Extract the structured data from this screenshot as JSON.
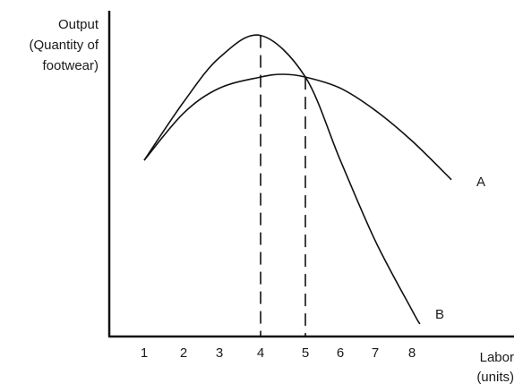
{
  "chart_data": {
    "type": "line",
    "ylabel_lines": [
      "Output",
      "(Quantity of",
      "footwear)"
    ],
    "xlabel_lines": [
      "Labor",
      "(units)"
    ],
    "x_ticks": [
      1,
      2,
      3,
      4,
      5,
      6,
      7,
      8
    ],
    "grid": false,
    "series": [
      {
        "name": "A",
        "x": [
          1,
          2,
          3,
          4,
          4.5,
          5,
          6,
          7,
          8,
          9
        ],
        "y": [
          0.59,
          0.76,
          0.85,
          0.89,
          0.9,
          0.89,
          0.85,
          0.77,
          0.66,
          0.52
        ]
      },
      {
        "name": "B",
        "x": [
          1,
          2,
          3,
          4,
          5,
          6,
          7,
          8,
          8.2
        ],
        "y": [
          0.59,
          0.8,
          0.96,
          1.04,
          0.89,
          0.59,
          0.3,
          0.05,
          0.0
        ]
      }
    ],
    "reference_lines": [
      {
        "x": 4,
        "y_top": 1.04
      },
      {
        "x": 5,
        "y_top": 0.89
      }
    ]
  }
}
